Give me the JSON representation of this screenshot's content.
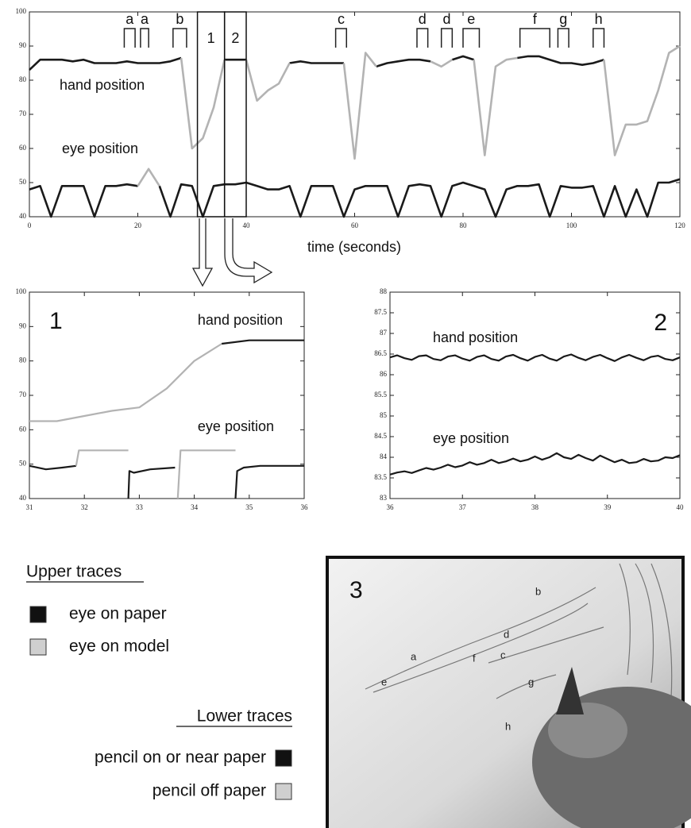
{
  "chart_data": [
    {
      "type": "line",
      "xlabel": "time (seconds)",
      "xlim": [
        0,
        120
      ],
      "xticks": [
        0,
        20,
        40,
        60,
        80,
        100,
        120
      ],
      "ylim": [
        40,
        100
      ],
      "yticks": [
        40,
        50,
        60,
        70,
        80,
        90,
        100
      ],
      "x": [
        0,
        2,
        4,
        6,
        8,
        10,
        12,
        14,
        16,
        18,
        20,
        22,
        24,
        26,
        28,
        30,
        32,
        34,
        36,
        38,
        40,
        42,
        44,
        46,
        48,
        50,
        52,
        54,
        56,
        58,
        60,
        62,
        64,
        66,
        68,
        70,
        72,
        74,
        76,
        78,
        80,
        82,
        84,
        86,
        88,
        90,
        92,
        94,
        96,
        98,
        100,
        102,
        104,
        106,
        108,
        110,
        112,
        114,
        116,
        118,
        120
      ],
      "labels": [
        "hand position",
        "eye position"
      ],
      "series": [
        {
          "color": "#1a1a1a",
          "values": [
            83,
            86,
            86,
            86,
            85.5,
            86,
            85,
            85,
            85,
            85.5,
            85,
            85,
            85,
            85.5,
            86.5,
            null,
            null,
            null,
            86,
            86,
            86,
            null,
            null,
            null,
            85,
            85.5,
            85,
            85,
            85,
            85,
            null,
            null,
            84,
            85,
            85.5,
            86,
            86,
            85.5,
            null,
            86,
            87,
            86,
            null,
            null,
            null,
            86.5,
            87,
            87,
            86,
            85,
            85,
            84.5,
            85,
            86,
            null,
            null,
            null,
            null,
            null,
            null,
            null
          ]
        },
        {
          "color": "#b3b3b3",
          "values": [
            null,
            null,
            null,
            null,
            null,
            null,
            null,
            null,
            null,
            null,
            null,
            null,
            null,
            null,
            86.5,
            60,
            63,
            72,
            86,
            null,
            86,
            74,
            77,
            79,
            85,
            null,
            null,
            null,
            null,
            85,
            57,
            88,
            84,
            null,
            null,
            null,
            null,
            85.5,
            84,
            86,
            null,
            86,
            58,
            84,
            86,
            86.5,
            null,
            null,
            null,
            null,
            null,
            null,
            null,
            86,
            58,
            67,
            67,
            68,
            77,
            88,
            90
          ]
        },
        {
          "color": "#1a1a1a",
          "values": [
            48,
            49,
            40,
            49,
            49,
            49,
            40,
            49,
            49,
            49.5,
            49,
            null,
            49,
            40,
            49.5,
            49,
            40,
            49,
            49.5,
            49.5,
            50,
            49,
            48,
            48,
            49,
            40,
            49,
            49,
            49,
            40,
            48,
            49,
            49,
            49,
            40,
            49,
            49.5,
            49,
            40,
            49,
            50,
            49,
            48,
            40,
            48,
            49,
            49,
            49.5,
            40,
            49,
            48.5,
            48.5,
            49,
            40,
            49,
            40,
            48,
            40,
            50,
            50,
            51
          ]
        },
        {
          "color": "#b3b3b3",
          "values": [
            null,
            null,
            null,
            null,
            null,
            null,
            null,
            null,
            null,
            null,
            49,
            54,
            49,
            null,
            null,
            null,
            null,
            null,
            null,
            null,
            null,
            null,
            null,
            null,
            null,
            null,
            null,
            null,
            null,
            null,
            null,
            null,
            null,
            null,
            null,
            null,
            null,
            null,
            null,
            null,
            null,
            null,
            null,
            null,
            null,
            null,
            null,
            null,
            null,
            null,
            null,
            null,
            null,
            null,
            null,
            null,
            null,
            null,
            null,
            null,
            null
          ]
        }
      ],
      "events": [
        {
          "label": "a",
          "start": 17.5,
          "end": 19.5
        },
        {
          "label": "a",
          "start": 20.5,
          "end": 22
        },
        {
          "label": "b",
          "start": 26.5,
          "end": 29
        },
        {
          "label": "c",
          "start": 56.5,
          "end": 58.5
        },
        {
          "label": "d",
          "start": 71.5,
          "end": 73.5
        },
        {
          "label": "d",
          "start": 76,
          "end": 78
        },
        {
          "label": "e",
          "start": 80,
          "end": 83
        },
        {
          "label": "f",
          "start": 90.5,
          "end": 96
        },
        {
          "label": "g",
          "start": 97.5,
          "end": 99.5
        },
        {
          "label": "h",
          "start": 104,
          "end": 106
        }
      ],
      "zooms": [
        {
          "label": "1",
          "start": 31,
          "end": 36
        },
        {
          "label": "2",
          "start": 36,
          "end": 40
        }
      ]
    },
    {
      "type": "line",
      "panel_label": "1",
      "xlim": [
        31,
        36
      ],
      "xticks": [
        31,
        32,
        33,
        34,
        35,
        36
      ],
      "ylim": [
        40,
        100
      ],
      "yticks": [
        40,
        50,
        60,
        70,
        80,
        90,
        100
      ],
      "labels": [
        "hand position",
        "eye position"
      ],
      "series": [
        {
          "color": "#b3b3b3",
          "x": [
            31,
            31.5,
            32,
            32.5,
            33,
            33.5,
            34,
            34.5
          ],
          "values": [
            62.5,
            62.5,
            64,
            65.5,
            66.5,
            72,
            80,
            85
          ]
        },
        {
          "color": "#1a1a1a",
          "x": [
            34.5,
            35,
            35.5,
            36
          ],
          "values": [
            85,
            86,
            86,
            86
          ]
        },
        {
          "color": "#1a1a1a",
          "x": [
            31,
            31.3,
            31.6,
            31.85,
            32.5,
            32.8,
            32.82,
            32.9,
            33.2,
            33.65,
            34.2,
            34.75,
            34.78,
            34.9,
            35.2,
            36
          ],
          "values": [
            49.5,
            48.5,
            49,
            49.5,
            null,
            40,
            48,
            47.5,
            48.5,
            49,
            null,
            40,
            48,
            49,
            49.5,
            49.5
          ]
        },
        {
          "color": "#b3b3b3",
          "x": [
            31.85,
            31.9,
            32.8,
            33,
            33.7,
            33.75,
            34.75
          ],
          "values": [
            49.5,
            54,
            54,
            null,
            40,
            54,
            54
          ]
        }
      ]
    },
    {
      "type": "line",
      "panel_label": "2",
      "xlim": [
        36,
        40
      ],
      "xticks": [
        36,
        37,
        38,
        39,
        40
      ],
      "ylim": [
        83,
        88
      ],
      "yticks": [
        83,
        83.5,
        84,
        84.5,
        85,
        85.5,
        86,
        86.5,
        87,
        87.5,
        88
      ],
      "labels": [
        "hand position",
        "eye position"
      ],
      "x": [
        36,
        36.1,
        36.2,
        36.3,
        36.4,
        36.5,
        36.6,
        36.7,
        36.8,
        36.9,
        37,
        37.1,
        37.2,
        37.3,
        37.4,
        37.5,
        37.6,
        37.7,
        37.8,
        37.9,
        38,
        38.1,
        38.2,
        38.3,
        38.4,
        38.5,
        38.6,
        38.7,
        38.8,
        38.9,
        39,
        39.1,
        39.2,
        39.3,
        39.4,
        39.5,
        39.6,
        39.7,
        39.8,
        39.9,
        40
      ],
      "series": [
        {
          "color": "#1a1a1a",
          "values": [
            86.42,
            86.47,
            86.4,
            86.36,
            86.45,
            86.47,
            86.38,
            86.35,
            86.44,
            86.47,
            86.39,
            86.34,
            86.43,
            86.47,
            86.38,
            86.34,
            86.44,
            86.48,
            86.4,
            86.34,
            86.43,
            86.48,
            86.39,
            86.34,
            86.44,
            86.49,
            86.41,
            86.35,
            86.43,
            86.48,
            86.4,
            86.33,
            86.42,
            86.48,
            86.41,
            86.35,
            86.43,
            86.46,
            86.38,
            86.35,
            86.42
          ]
        },
        {
          "color": "#1a1a1a",
          "values": [
            83.58,
            83.63,
            83.66,
            83.62,
            83.68,
            83.74,
            83.7,
            83.75,
            83.82,
            83.76,
            83.8,
            83.88,
            83.82,
            83.86,
            83.94,
            83.86,
            83.9,
            83.97,
            83.9,
            83.94,
            84.02,
            83.94,
            84.0,
            84.1,
            84.0,
            83.96,
            84.06,
            83.98,
            83.92,
            84.04,
            83.96,
            83.88,
            83.94,
            83.86,
            83.88,
            83.96,
            83.9,
            83.92,
            84.0,
            83.98,
            84.05
          ]
        }
      ]
    }
  ],
  "legend": {
    "upper": {
      "title": "Upper traces",
      "items": [
        {
          "label": "eye on paper",
          "color": "#111111"
        },
        {
          "label": "eye on model",
          "color": "#cfcfcf"
        }
      ]
    },
    "lower": {
      "title": "Lower traces",
      "items": [
        {
          "label": "pencil on or near paper",
          "color": "#111111"
        },
        {
          "label": "pencil off paper",
          "color": "#cfcfcf"
        }
      ]
    }
  },
  "panel3": {
    "label": "3",
    "marks": [
      "e",
      "a",
      "b",
      "d",
      "f",
      "c",
      "g",
      "h"
    ]
  }
}
